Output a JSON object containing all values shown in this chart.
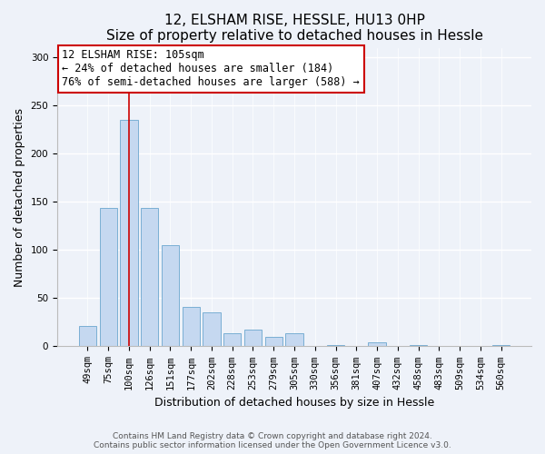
{
  "title": "12, ELSHAM RISE, HESSLE, HU13 0HP",
  "subtitle": "Size of property relative to detached houses in Hessle",
  "xlabel": "Distribution of detached houses by size in Hessle",
  "ylabel": "Number of detached properties",
  "categories": [
    "49sqm",
    "75sqm",
    "100sqm",
    "126sqm",
    "151sqm",
    "177sqm",
    "202sqm",
    "228sqm",
    "253sqm",
    "279sqm",
    "305sqm",
    "330sqm",
    "356sqm",
    "381sqm",
    "407sqm",
    "432sqm",
    "458sqm",
    "483sqm",
    "509sqm",
    "534sqm",
    "560sqm"
  ],
  "values": [
    21,
    144,
    235,
    144,
    105,
    41,
    35,
    14,
    17,
    10,
    14,
    0,
    1,
    0,
    4,
    0,
    1,
    0,
    0,
    0,
    1
  ],
  "bar_color": "#c5d8f0",
  "bar_edge_color": "#7aafd4",
  "vline_x": 2,
  "vline_color": "#cc0000",
  "annotation_line1": "12 ELSHAM RISE: 105sqm",
  "annotation_line2": "← 24% of detached houses are smaller (184)",
  "annotation_line3": "76% of semi-detached houses are larger (588) →",
  "annotation_box_color": "#ffffff",
  "annotation_box_edge_color": "#cc0000",
  "ylim": [
    0,
    310
  ],
  "yticks": [
    0,
    50,
    100,
    150,
    200,
    250,
    300
  ],
  "footer_line1": "Contains HM Land Registry data © Crown copyright and database right 2024.",
  "footer_line2": "Contains public sector information licensed under the Open Government Licence v3.0.",
  "background_color": "#eef2f9",
  "plot_background_color": "#eef2f9",
  "title_fontsize": 11,
  "subtitle_fontsize": 10,
  "axis_label_fontsize": 9,
  "tick_fontsize": 7.5,
  "footer_fontsize": 6.5,
  "annotation_fontsize": 8.5
}
